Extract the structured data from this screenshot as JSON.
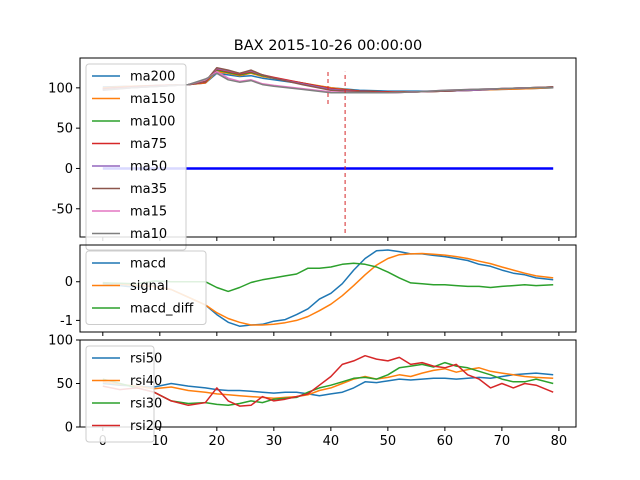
{
  "chart_data": [
    {
      "type": "line",
      "title": "BAX 2015-10-26 00:00:00",
      "xlim": [
        -4,
        83
      ],
      "ylim": [
        -85,
        137
      ],
      "yticks": [
        100,
        50,
        0,
        -50
      ],
      "grid": false,
      "legend_position": "top-left",
      "series": [
        {
          "name": "ma200",
          "color": "#1f77b4",
          "x": [
            0,
            5,
            10,
            15,
            18,
            20,
            22,
            24,
            26,
            28,
            30,
            35,
            40,
            45,
            50,
            55,
            60,
            65,
            70,
            75,
            79
          ],
          "y": [
            101,
            102,
            103,
            104,
            106,
            118,
            116,
            114,
            115,
            112,
            110,
            105,
            100,
            97,
            96,
            96,
            96,
            97,
            98,
            99,
            100
          ]
        },
        {
          "name": "ma150",
          "color": "#ff7f0e",
          "x": [
            0,
            5,
            10,
            15,
            18,
            20,
            22,
            24,
            26,
            28,
            30,
            35,
            40,
            45,
            50,
            55,
            60,
            65,
            70,
            75,
            79
          ],
          "y": [
            100,
            102,
            103,
            104,
            106,
            120,
            118,
            115,
            118,
            114,
            112,
            106,
            100,
            96,
            95,
            95,
            96,
            97,
            98,
            99,
            100
          ]
        },
        {
          "name": "ma100",
          "color": "#2ca02c",
          "x": [
            0,
            5,
            10,
            15,
            18,
            20,
            22,
            24,
            26,
            28,
            30,
            35,
            40,
            45,
            50,
            55,
            60,
            65,
            70,
            75,
            79
          ],
          "y": [
            99,
            101,
            103,
            104,
            107,
            122,
            119,
            116,
            119,
            115,
            112,
            106,
            99,
            96,
            95,
            95,
            96,
            97,
            99,
            100,
            101
          ]
        },
        {
          "name": "ma75",
          "color": "#d62728",
          "x": [
            0,
            5,
            10,
            15,
            18,
            20,
            22,
            24,
            26,
            28,
            30,
            35,
            40,
            45,
            50,
            55,
            60,
            65,
            70,
            75,
            79
          ],
          "y": [
            99,
            101,
            103,
            104,
            107,
            123,
            120,
            117,
            120,
            116,
            113,
            106,
            99,
            96,
            95,
            95,
            96,
            97,
            99,
            100,
            101
          ]
        },
        {
          "name": "ma50",
          "color": "#9467bd",
          "x": [
            0,
            5,
            10,
            15,
            18,
            20,
            22,
            24,
            26,
            28,
            30,
            35,
            40,
            45,
            50,
            55,
            60,
            65,
            70,
            75,
            79
          ],
          "y": [
            98,
            100,
            102,
            104,
            108,
            124,
            121,
            118,
            121,
            116,
            112,
            105,
            98,
            95,
            94,
            95,
            96,
            97,
            99,
            100,
            101
          ]
        },
        {
          "name": "ma35",
          "color": "#8c564b",
          "x": [
            0,
            5,
            10,
            15,
            18,
            20,
            22,
            24,
            26,
            28,
            30,
            35,
            40,
            45,
            50,
            55,
            60,
            65,
            70,
            75,
            79
          ],
          "y": [
            98,
            100,
            102,
            104,
            108,
            125,
            122,
            118,
            122,
            116,
            112,
            104,
            97,
            95,
            94,
            95,
            96,
            98,
            99,
            100,
            101
          ]
        },
        {
          "name": "ma15",
          "color": "#e377c2",
          "x": [
            0,
            5,
            10,
            15,
            18,
            20,
            22,
            24,
            26,
            28,
            30,
            35,
            40,
            45,
            50,
            55,
            60,
            65,
            70,
            75,
            79
          ],
          "y": [
            97,
            100,
            102,
            104,
            110,
            120,
            112,
            108,
            110,
            105,
            103,
            99,
            95,
            94,
            94,
            95,
            97,
            98,
            99,
            100,
            100
          ]
        },
        {
          "name": "ma10",
          "color": "#7f7f7f",
          "x": [
            0,
            5,
            10,
            15,
            18,
            20,
            22,
            24,
            26,
            28,
            30,
            35,
            40,
            45,
            50,
            55,
            60,
            65,
            70,
            75,
            79
          ],
          "y": [
            97,
            100,
            102,
            104,
            111,
            118,
            110,
            107,
            109,
            104,
            102,
            98,
            94,
            94,
            94,
            95,
            97,
            98,
            99,
            100,
            100
          ]
        },
        {
          "name": "",
          "color": "#0000ff",
          "x": [
            0,
            79
          ],
          "y": [
            0,
            0
          ]
        }
      ],
      "vlines": [
        {
          "x": 39.5,
          "ymin": 80,
          "ymax": 120,
          "color": "#d62728"
        },
        {
          "x": 42.5,
          "ymin": -80,
          "ymax": 120,
          "color": "#d62728"
        }
      ]
    },
    {
      "type": "line",
      "xlim": [
        -4,
        83
      ],
      "ylim": [
        -1.3,
        0.95
      ],
      "yticks": [
        0,
        -1
      ],
      "grid": false,
      "legend_position": "top-left",
      "series": [
        {
          "name": "macd",
          "color": "#1f77b4",
          "x": [
            0,
            3,
            6,
            9,
            12,
            15,
            18,
            20,
            22,
            24,
            26,
            28,
            30,
            32,
            34,
            36,
            38,
            40,
            42,
            44,
            46,
            48,
            50,
            52,
            54,
            56,
            58,
            60,
            62,
            64,
            66,
            68,
            70,
            72,
            74,
            76,
            79
          ],
          "y": [
            -0.05,
            -0.1,
            -0.15,
            -0.1,
            -0.2,
            -0.4,
            -0.6,
            -0.85,
            -1.05,
            -1.15,
            -1.12,
            -1.1,
            -1.02,
            -0.98,
            -0.85,
            -0.7,
            -0.45,
            -0.3,
            -0.05,
            0.3,
            0.6,
            0.8,
            0.82,
            0.78,
            0.72,
            0.72,
            0.68,
            0.65,
            0.6,
            0.55,
            0.45,
            0.4,
            0.3,
            0.22,
            0.18,
            0.1,
            0.05
          ]
        },
        {
          "name": "signal",
          "color": "#ff7f0e",
          "x": [
            0,
            3,
            6,
            9,
            12,
            15,
            18,
            20,
            22,
            24,
            26,
            28,
            30,
            32,
            34,
            36,
            38,
            40,
            42,
            44,
            46,
            48,
            50,
            52,
            54,
            56,
            58,
            60,
            62,
            64,
            66,
            68,
            70,
            72,
            74,
            76,
            79
          ],
          "y": [
            -0.02,
            -0.06,
            -0.1,
            -0.12,
            -0.2,
            -0.4,
            -0.6,
            -0.8,
            -0.95,
            -1.05,
            -1.12,
            -1.12,
            -1.1,
            -1.06,
            -1.0,
            -0.9,
            -0.75,
            -0.58,
            -0.36,
            -0.1,
            0.18,
            0.43,
            0.6,
            0.7,
            0.72,
            0.73,
            0.71,
            0.69,
            0.65,
            0.6,
            0.53,
            0.47,
            0.38,
            0.3,
            0.22,
            0.15,
            0.1
          ]
        },
        {
          "name": "macd_diff",
          "color": "#2ca02c",
          "x": [
            0,
            3,
            6,
            9,
            12,
            15,
            18,
            20,
            22,
            24,
            26,
            28,
            30,
            32,
            34,
            36,
            38,
            40,
            42,
            44,
            46,
            48,
            50,
            52,
            54,
            56,
            58,
            60,
            62,
            64,
            66,
            68,
            70,
            72,
            74,
            76,
            79
          ],
          "y": [
            -0.03,
            -0.04,
            -0.05,
            0.02,
            0.0,
            0.0,
            0.0,
            -0.15,
            -0.25,
            -0.15,
            -0.02,
            0.05,
            0.1,
            0.15,
            0.2,
            0.35,
            0.35,
            0.38,
            0.45,
            0.48,
            0.45,
            0.38,
            0.25,
            0.1,
            -0.03,
            -0.05,
            -0.08,
            -0.08,
            -0.1,
            -0.12,
            -0.12,
            -0.15,
            -0.12,
            -0.1,
            -0.08,
            -0.1,
            -0.08
          ]
        }
      ]
    },
    {
      "type": "line",
      "xlim": [
        -4,
        83
      ],
      "ylim": [
        0,
        100
      ],
      "yticks": [
        100,
        50,
        0
      ],
      "xticks": [
        0,
        10,
        20,
        30,
        40,
        50,
        60,
        70,
        80
      ],
      "grid": false,
      "legend_position": "top-left",
      "series": [
        {
          "name": "rsi50",
          "color": "#1f77b4",
          "x": [
            0,
            3,
            6,
            9,
            12,
            15,
            18,
            20,
            22,
            24,
            26,
            28,
            30,
            32,
            34,
            36,
            38,
            40,
            42,
            44,
            46,
            48,
            50,
            52,
            54,
            56,
            58,
            60,
            62,
            64,
            66,
            68,
            70,
            72,
            74,
            76,
            79
          ],
          "y": [
            50,
            48,
            47,
            46,
            50,
            47,
            45,
            43,
            42,
            42,
            41,
            40,
            39,
            40,
            40,
            38,
            36,
            38,
            40,
            45,
            52,
            51,
            53,
            55,
            54,
            55,
            56,
            56,
            55,
            56,
            57,
            56,
            58,
            60,
            61,
            62,
            60
          ]
        },
        {
          "name": "rsi40",
          "color": "#ff7f0e",
          "x": [
            0,
            3,
            6,
            9,
            12,
            15,
            18,
            20,
            22,
            24,
            26,
            28,
            30,
            32,
            34,
            36,
            38,
            40,
            42,
            44,
            46,
            48,
            50,
            52,
            54,
            56,
            58,
            60,
            62,
            64,
            66,
            68,
            70,
            72,
            74,
            76,
            79
          ],
          "y": [
            52,
            49,
            47,
            44,
            46,
            42,
            40,
            38,
            37,
            36,
            35,
            34,
            33,
            34,
            35,
            37,
            42,
            45,
            50,
            55,
            58,
            55,
            57,
            60,
            58,
            62,
            65,
            67,
            63,
            66,
            68,
            64,
            62,
            60,
            58,
            57,
            56
          ]
        },
        {
          "name": "rsi30",
          "color": "#2ca02c",
          "x": [
            0,
            3,
            6,
            9,
            12,
            15,
            18,
            20,
            22,
            24,
            26,
            28,
            30,
            32,
            34,
            36,
            38,
            40,
            42,
            44,
            46,
            48,
            50,
            52,
            54,
            56,
            58,
            60,
            62,
            64,
            66,
            68,
            70,
            72,
            74,
            76,
            79
          ],
          "y": [
            55,
            50,
            45,
            40,
            30,
            27,
            28,
            26,
            25,
            27,
            30,
            28,
            32,
            33,
            34,
            40,
            45,
            48,
            52,
            56,
            57,
            55,
            60,
            68,
            70,
            72,
            69,
            74,
            70,
            68,
            64,
            60,
            55,
            52,
            52,
            55,
            50
          ]
        },
        {
          "name": "rsi20",
          "color": "#d62728",
          "x": [
            0,
            3,
            6,
            9,
            12,
            15,
            18,
            20,
            22,
            24,
            26,
            28,
            30,
            32,
            34,
            36,
            38,
            40,
            42,
            44,
            46,
            48,
            50,
            52,
            54,
            56,
            58,
            60,
            62,
            64,
            66,
            68,
            70,
            72,
            74,
            76,
            79
          ],
          "y": [
            47,
            43,
            45,
            40,
            30,
            25,
            28,
            45,
            30,
            24,
            25,
            35,
            30,
            32,
            35,
            38,
            48,
            58,
            72,
            76,
            82,
            78,
            76,
            80,
            72,
            74,
            70,
            68,
            72,
            60,
            55,
            45,
            50,
            45,
            50,
            48,
            40
          ]
        }
      ]
    }
  ]
}
